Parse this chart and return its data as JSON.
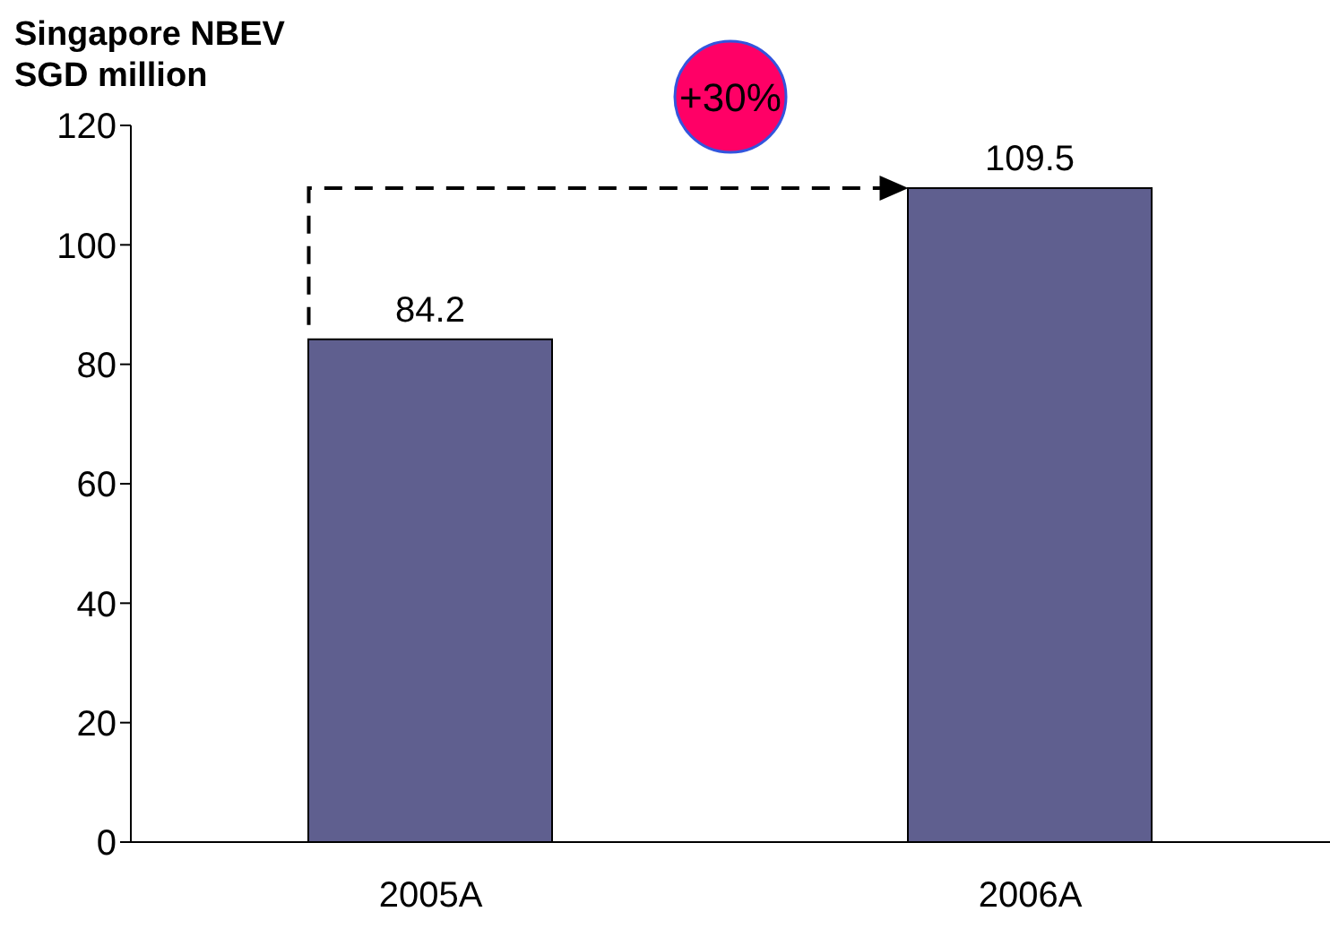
{
  "chart_data": {
    "type": "bar",
    "title": "Singapore NBEV",
    "subtitle": "SGD million",
    "categories": [
      "2005A",
      "2006A"
    ],
    "values": [
      84.2,
      109.5
    ],
    "color": "#5f5f8f",
    "ylim": [
      0,
      120
    ],
    "yticks": [
      0,
      20,
      40,
      60,
      80,
      100,
      120
    ],
    "data_labels": true,
    "grid": false,
    "legend": false,
    "annotations": [
      "+30%"
    ]
  }
}
